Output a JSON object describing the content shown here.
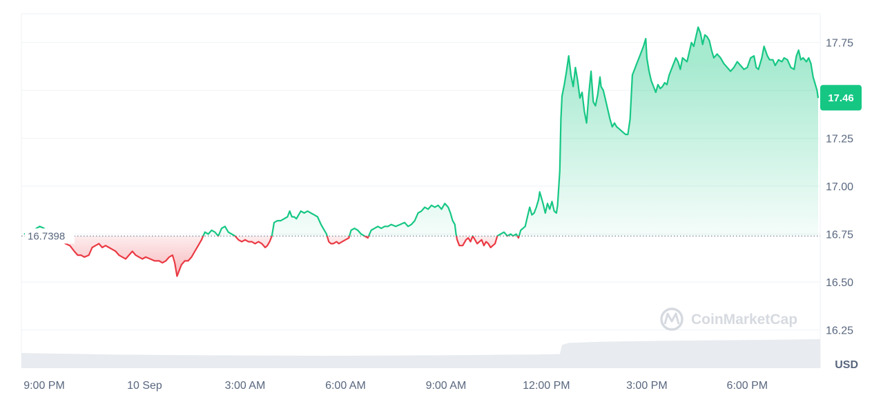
{
  "chart_data": {
    "type": "area",
    "currency": "USD",
    "reference_price": "16.7398",
    "reference_value": 16.7398,
    "current_price": "17.46",
    "ylim": [
      16.05,
      17.9
    ],
    "yticks": [
      "16.25",
      "16.50",
      "16.75",
      "17.00",
      "17.25",
      "17.50",
      "17.75"
    ],
    "ytick_values": [
      16.25,
      16.5,
      16.75,
      17.0,
      17.25,
      17.5,
      17.75
    ],
    "x_range": [
      0,
      1387
    ],
    "xticks": [
      {
        "t": 0,
        "label": "9:00 PM"
      },
      {
        "t": 180,
        "label": "10 Sep"
      },
      {
        "t": 360,
        "label": "3:00 AM"
      },
      {
        "t": 540,
        "label": "6:00 AM"
      },
      {
        "t": 720,
        "label": "9:00 AM"
      },
      {
        "t": 900,
        "label": "12:00 PM"
      },
      {
        "t": 1080,
        "label": "3:00 PM"
      },
      {
        "t": 1260,
        "label": "6:00 PM"
      }
    ],
    "colors": {
      "up": "#16c784",
      "down": "#ea3943",
      "axis_text": "#58667e",
      "grid": "#eff2f5",
      "volume": "#e8ebef"
    },
    "series": [
      {
        "points": [
          [
            -36,
            16.75
          ],
          [
            -24,
            16.76
          ],
          [
            -14,
            16.78
          ],
          [
            -8,
            16.79
          ],
          [
            0,
            16.78
          ],
          [
            6,
            16.76
          ],
          [
            14,
            16.74
          ],
          [
            22,
            16.73
          ],
          [
            30,
            16.72
          ],
          [
            38,
            16.7
          ],
          [
            46,
            16.69
          ],
          [
            54,
            16.66
          ],
          [
            60,
            16.64
          ],
          [
            66,
            16.64
          ],
          [
            72,
            16.63
          ],
          [
            80,
            16.64
          ],
          [
            86,
            16.68
          ],
          [
            92,
            16.69
          ],
          [
            98,
            16.7
          ],
          [
            104,
            16.68
          ],
          [
            110,
            16.69
          ],
          [
            116,
            16.68
          ],
          [
            122,
            16.67
          ],
          [
            128,
            16.66
          ],
          [
            134,
            16.64
          ],
          [
            140,
            16.63
          ],
          [
            146,
            16.62
          ],
          [
            152,
            16.64
          ],
          [
            158,
            16.66
          ],
          [
            164,
            16.64
          ],
          [
            170,
            16.63
          ],
          [
            176,
            16.62
          ],
          [
            182,
            16.63
          ],
          [
            190,
            16.62
          ],
          [
            198,
            16.61
          ],
          [
            206,
            16.61
          ],
          [
            212,
            16.6
          ],
          [
            218,
            16.61
          ],
          [
            224,
            16.63
          ],
          [
            230,
            16.64
          ],
          [
            234,
            16.6
          ],
          [
            238,
            16.53
          ],
          [
            242,
            16.56
          ],
          [
            246,
            16.59
          ],
          [
            252,
            16.61
          ],
          [
            258,
            16.61
          ],
          [
            264,
            16.63
          ],
          [
            270,
            16.66
          ],
          [
            276,
            16.69
          ],
          [
            282,
            16.72
          ],
          [
            288,
            16.76
          ],
          [
            294,
            16.75
          ],
          [
            300,
            16.77
          ],
          [
            306,
            16.76
          ],
          [
            312,
            16.74
          ],
          [
            318,
            16.78
          ],
          [
            324,
            16.79
          ],
          [
            330,
            16.76
          ],
          [
            336,
            16.75
          ],
          [
            342,
            16.74
          ],
          [
            348,
            16.72
          ],
          [
            354,
            16.71
          ],
          [
            360,
            16.72
          ],
          [
            366,
            16.71
          ],
          [
            372,
            16.71
          ],
          [
            378,
            16.7
          ],
          [
            384,
            16.71
          ],
          [
            390,
            16.7
          ],
          [
            396,
            16.68
          ],
          [
            400,
            16.69
          ],
          [
            404,
            16.71
          ],
          [
            408,
            16.74
          ],
          [
            412,
            16.81
          ],
          [
            418,
            16.82
          ],
          [
            424,
            16.82
          ],
          [
            430,
            16.83
          ],
          [
            436,
            16.84
          ],
          [
            440,
            16.87
          ],
          [
            444,
            16.84
          ],
          [
            448,
            16.84
          ],
          [
            452,
            16.83
          ],
          [
            456,
            16.85
          ],
          [
            460,
            16.87
          ],
          [
            466,
            16.86
          ],
          [
            472,
            16.87
          ],
          [
            478,
            16.86
          ],
          [
            484,
            16.85
          ],
          [
            490,
            16.84
          ],
          [
            496,
            16.8
          ],
          [
            500,
            16.78
          ],
          [
            506,
            16.75
          ],
          [
            510,
            16.71
          ],
          [
            514,
            16.7
          ],
          [
            518,
            16.7
          ],
          [
            524,
            16.71
          ],
          [
            528,
            16.7
          ],
          [
            534,
            16.71
          ],
          [
            540,
            16.72
          ],
          [
            546,
            16.73
          ],
          [
            550,
            16.77
          ],
          [
            556,
            16.78
          ],
          [
            562,
            16.77
          ],
          [
            568,
            16.75
          ],
          [
            574,
            16.74
          ],
          [
            580,
            16.73
          ],
          [
            586,
            16.77
          ],
          [
            592,
            16.78
          ],
          [
            598,
            16.79
          ],
          [
            604,
            16.78
          ],
          [
            610,
            16.79
          ],
          [
            616,
            16.79
          ],
          [
            622,
            16.8
          ],
          [
            630,
            16.79
          ],
          [
            638,
            16.8
          ],
          [
            646,
            16.81
          ],
          [
            652,
            16.79
          ],
          [
            658,
            16.8
          ],
          [
            664,
            16.82
          ],
          [
            670,
            16.86
          ],
          [
            676,
            16.87
          ],
          [
            682,
            16.89
          ],
          [
            688,
            16.88
          ],
          [
            694,
            16.9
          ],
          [
            700,
            16.89
          ],
          [
            706,
            16.9
          ],
          [
            712,
            16.88
          ],
          [
            718,
            16.91
          ],
          [
            724,
            16.89
          ],
          [
            728,
            16.86
          ],
          [
            732,
            16.82
          ],
          [
            736,
            16.8
          ],
          [
            738,
            16.75
          ],
          [
            740,
            16.72
          ],
          [
            744,
            16.69
          ],
          [
            750,
            16.69
          ],
          [
            756,
            16.72
          ],
          [
            760,
            16.73
          ],
          [
            764,
            16.71
          ],
          [
            768,
            16.74
          ],
          [
            772,
            16.72
          ],
          [
            776,
            16.7
          ],
          [
            780,
            16.71
          ],
          [
            784,
            16.72
          ],
          [
            788,
            16.69
          ],
          [
            792,
            16.71
          ],
          [
            796,
            16.7
          ],
          [
            800,
            16.68
          ],
          [
            804,
            16.69
          ],
          [
            808,
            16.7
          ],
          [
            812,
            16.74
          ],
          [
            818,
            16.75
          ],
          [
            824,
            16.76
          ],
          [
            830,
            16.74
          ],
          [
            836,
            16.75
          ],
          [
            840,
            16.74
          ],
          [
            846,
            16.75
          ],
          [
            850,
            16.73
          ],
          [
            854,
            16.77
          ],
          [
            858,
            16.78
          ],
          [
            862,
            16.79
          ],
          [
            866,
            16.84
          ],
          [
            870,
            16.89
          ],
          [
            874,
            16.85
          ],
          [
            878,
            16.86
          ],
          [
            882,
            16.89
          ],
          [
            886,
            16.93
          ],
          [
            888,
            16.97
          ],
          [
            890,
            16.95
          ],
          [
            894,
            16.91
          ],
          [
            898,
            16.86
          ],
          [
            902,
            16.91
          ],
          [
            906,
            16.88
          ],
          [
            910,
            16.92
          ],
          [
            914,
            16.87
          ],
          [
            918,
            16.86
          ],
          [
            920,
            16.9
          ],
          [
            924,
            17.08
          ],
          [
            926,
            17.35
          ],
          [
            928,
            17.47
          ],
          [
            932,
            17.53
          ],
          [
            936,
            17.6
          ],
          [
            940,
            17.68
          ],
          [
            944,
            17.58
          ],
          [
            948,
            17.52
          ],
          [
            952,
            17.62
          ],
          [
            956,
            17.55
          ],
          [
            960,
            17.46
          ],
          [
            964,
            17.49
          ],
          [
            968,
            17.39
          ],
          [
            972,
            17.33
          ],
          [
            976,
            17.48
          ],
          [
            980,
            17.6
          ],
          [
            984,
            17.44
          ],
          [
            988,
            17.42
          ],
          [
            992,
            17.48
          ],
          [
            996,
            17.57
          ],
          [
            998,
            17.52
          ],
          [
            1002,
            17.5
          ],
          [
            1006,
            17.45
          ],
          [
            1010,
            17.4
          ],
          [
            1014,
            17.35
          ],
          [
            1018,
            17.31
          ],
          [
            1022,
            17.33
          ],
          [
            1026,
            17.31
          ],
          [
            1030,
            17.3
          ],
          [
            1034,
            17.29
          ],
          [
            1038,
            17.28
          ],
          [
            1042,
            17.27
          ],
          [
            1046,
            17.27
          ],
          [
            1050,
            17.35
          ],
          [
            1054,
            17.58
          ],
          [
            1058,
            17.61
          ],
          [
            1062,
            17.64
          ],
          [
            1066,
            17.67
          ],
          [
            1070,
            17.7
          ],
          [
            1074,
            17.73
          ],
          [
            1078,
            17.77
          ],
          [
            1080,
            17.67
          ],
          [
            1084,
            17.6
          ],
          [
            1088,
            17.55
          ],
          [
            1092,
            17.52
          ],
          [
            1096,
            17.49
          ],
          [
            1100,
            17.53
          ],
          [
            1104,
            17.51
          ],
          [
            1108,
            17.52
          ],
          [
            1112,
            17.54
          ],
          [
            1116,
            17.53
          ],
          [
            1120,
            17.58
          ],
          [
            1124,
            17.61
          ],
          [
            1128,
            17.64
          ],
          [
            1132,
            17.67
          ],
          [
            1136,
            17.65
          ],
          [
            1140,
            17.61
          ],
          [
            1144,
            17.67
          ],
          [
            1148,
            17.66
          ],
          [
            1152,
            17.65
          ],
          [
            1156,
            17.7
          ],
          [
            1160,
            17.75
          ],
          [
            1164,
            17.73
          ],
          [
            1168,
            17.78
          ],
          [
            1172,
            17.83
          ],
          [
            1176,
            17.8
          ],
          [
            1180,
            17.74
          ],
          [
            1184,
            17.79
          ],
          [
            1188,
            17.78
          ],
          [
            1192,
            17.76
          ],
          [
            1196,
            17.71
          ],
          [
            1200,
            17.67
          ],
          [
            1206,
            17.69
          ],
          [
            1212,
            17.67
          ],
          [
            1218,
            17.64
          ],
          [
            1224,
            17.62
          ],
          [
            1230,
            17.6
          ],
          [
            1236,
            17.62
          ],
          [
            1242,
            17.65
          ],
          [
            1248,
            17.63
          ],
          [
            1254,
            17.61
          ],
          [
            1260,
            17.62
          ],
          [
            1266,
            17.67
          ],
          [
            1272,
            17.68
          ],
          [
            1276,
            17.62
          ],
          [
            1280,
            17.61
          ],
          [
            1286,
            17.67
          ],
          [
            1290,
            17.73
          ],
          [
            1296,
            17.68
          ],
          [
            1300,
            17.66
          ],
          [
            1306,
            17.66
          ],
          [
            1310,
            17.63
          ],
          [
            1316,
            17.66
          ],
          [
            1322,
            17.65
          ],
          [
            1326,
            17.67
          ],
          [
            1332,
            17.66
          ],
          [
            1338,
            17.62
          ],
          [
            1344,
            17.61
          ],
          [
            1348,
            17.68
          ],
          [
            1352,
            17.71
          ],
          [
            1356,
            17.66
          ],
          [
            1360,
            17.67
          ],
          [
            1366,
            17.65
          ],
          [
            1370,
            17.67
          ],
          [
            1374,
            17.64
          ],
          [
            1378,
            17.57
          ],
          [
            1382,
            17.53
          ],
          [
            1385,
            17.5
          ],
          [
            1387,
            17.46
          ]
        ]
      }
    ],
    "volume_profile": [
      [
        -36,
        0.73
      ],
      [
        120,
        0.66
      ],
      [
        300,
        0.62
      ],
      [
        500,
        0.6
      ],
      [
        700,
        0.62
      ],
      [
        880,
        0.66
      ],
      [
        924,
        0.68
      ],
      [
        928,
        1.12
      ],
      [
        940,
        1.22
      ],
      [
        1000,
        1.28
      ],
      [
        1100,
        1.32
      ],
      [
        1250,
        1.36
      ],
      [
        1387,
        1.4
      ]
    ]
  },
  "watermark": {
    "text": "CoinMarketCap"
  }
}
